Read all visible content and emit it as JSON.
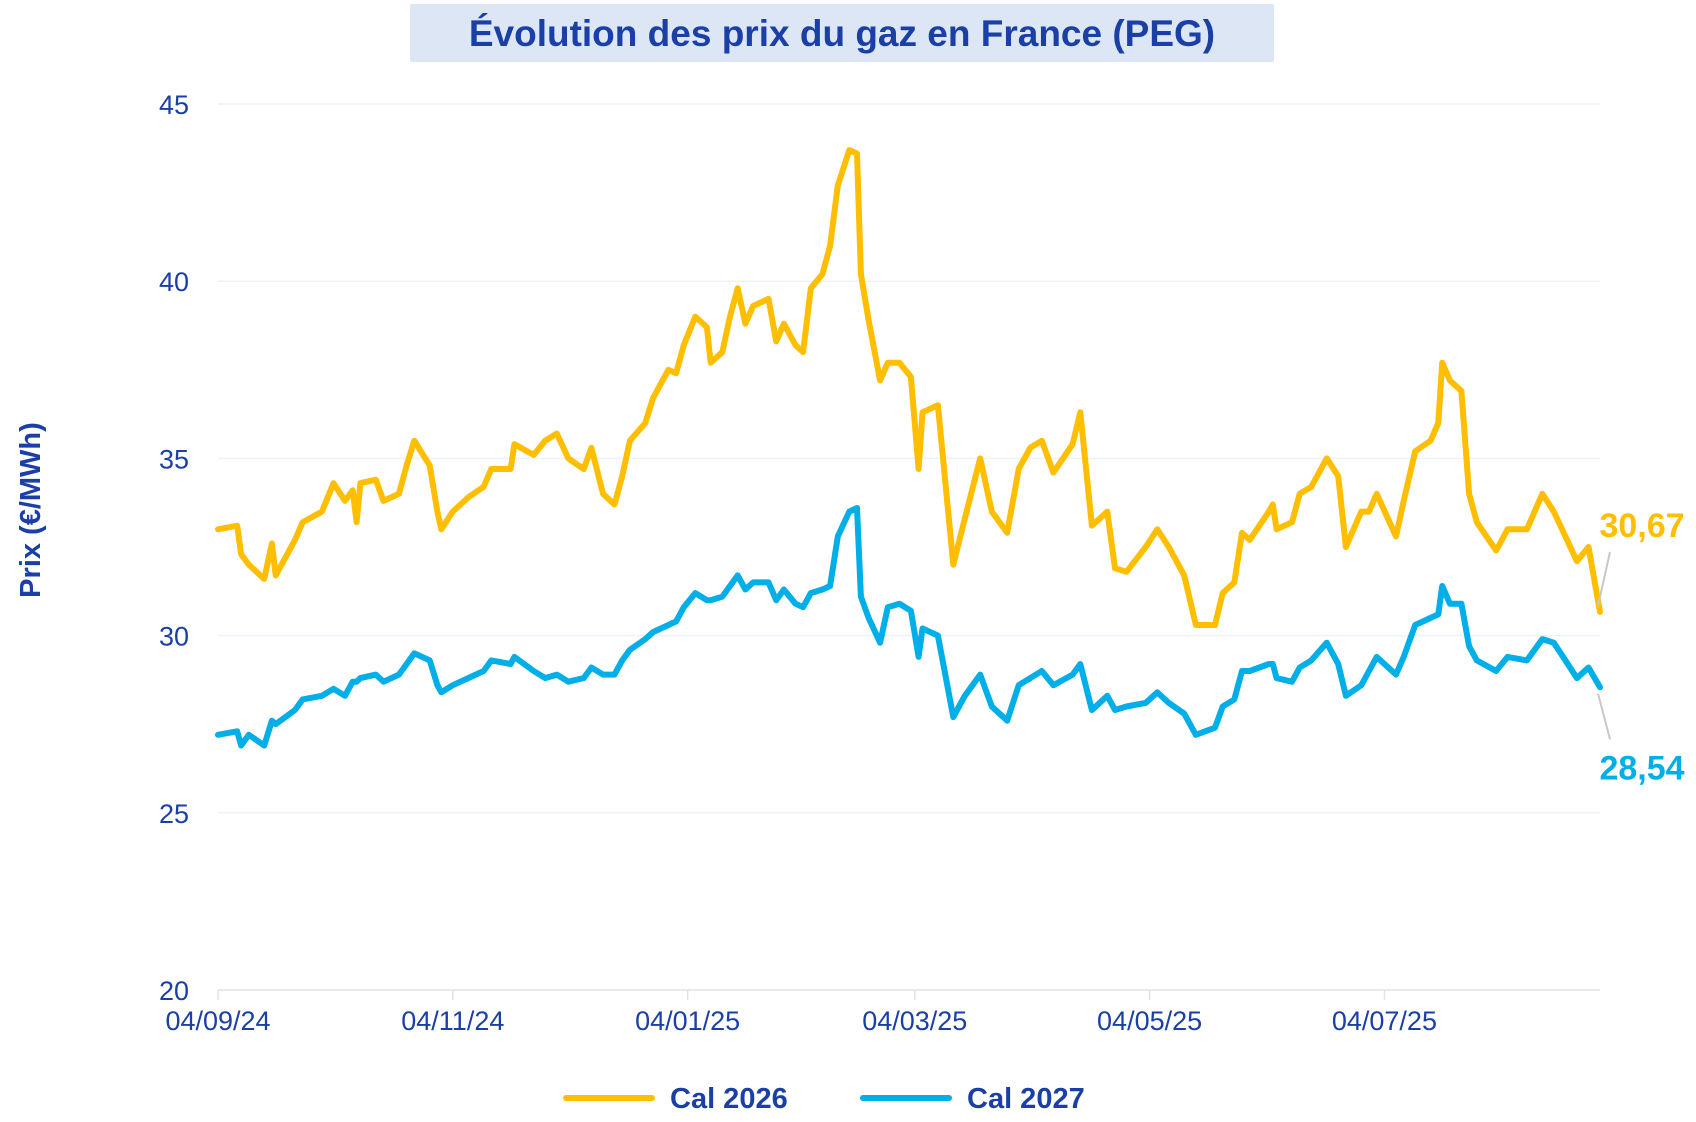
{
  "chart_data": {
    "type": "line",
    "title": "Évolution des prix du gaz en France (PEG)",
    "xlabel": "",
    "ylabel": "Prix (€/MWh)",
    "xlim": [
      "2024-09-04",
      "2025-08-29"
    ],
    "ylim": [
      20,
      45
    ],
    "yticks": [
      20,
      25,
      30,
      35,
      40,
      45
    ],
    "xticks": [
      {
        "date": "2024-09-04",
        "label": "04/09/24"
      },
      {
        "date": "2024-11-04",
        "label": "04/11/24"
      },
      {
        "date": "2025-01-04",
        "label": "04/01/25"
      },
      {
        "date": "2025-03-04",
        "label": "04/03/25"
      },
      {
        "date": "2025-05-04",
        "label": "04/05/25"
      },
      {
        "date": "2025-07-04",
        "label": "04/07/25"
      }
    ],
    "grid": true,
    "legend_position": "bottom",
    "series": [
      {
        "name": "Cal 2026",
        "color": "#ffbf00",
        "last_value_label": "30,67",
        "points": [
          [
            "2024-09-04",
            33.0
          ],
          [
            "2024-09-09",
            33.1
          ],
          [
            "2024-09-10",
            32.3
          ],
          [
            "2024-09-12",
            32.0
          ],
          [
            "2024-09-16",
            31.6
          ],
          [
            "2024-09-18",
            32.6
          ],
          [
            "2024-09-19",
            31.7
          ],
          [
            "2024-09-24",
            32.7
          ],
          [
            "2024-09-26",
            33.2
          ],
          [
            "2024-10-01",
            33.5
          ],
          [
            "2024-10-04",
            34.3
          ],
          [
            "2024-10-07",
            33.8
          ],
          [
            "2024-10-09",
            34.1
          ],
          [
            "2024-10-10",
            33.2
          ],
          [
            "2024-10-11",
            34.3
          ],
          [
            "2024-10-15",
            34.4
          ],
          [
            "2024-10-17",
            33.8
          ],
          [
            "2024-10-21",
            34.0
          ],
          [
            "2024-10-23",
            34.8
          ],
          [
            "2024-10-25",
            35.5
          ],
          [
            "2024-10-29",
            34.8
          ],
          [
            "2024-10-31",
            33.5
          ],
          [
            "2024-11-01",
            33.0
          ],
          [
            "2024-11-04",
            33.5
          ],
          [
            "2024-11-08",
            33.9
          ],
          [
            "2024-11-12",
            34.2
          ],
          [
            "2024-11-14",
            34.7
          ],
          [
            "2024-11-19",
            34.7
          ],
          [
            "2024-11-20",
            35.4
          ],
          [
            "2024-11-25",
            35.1
          ],
          [
            "2024-11-28",
            35.5
          ],
          [
            "2024-12-01",
            35.7
          ],
          [
            "2024-12-04",
            35.0
          ],
          [
            "2024-12-08",
            34.7
          ],
          [
            "2024-12-10",
            35.3
          ],
          [
            "2024-12-13",
            34.0
          ],
          [
            "2024-12-16",
            33.7
          ],
          [
            "2024-12-18",
            34.5
          ],
          [
            "2024-12-20",
            35.5
          ],
          [
            "2024-12-24",
            36.0
          ],
          [
            "2024-12-26",
            36.7
          ],
          [
            "2024-12-30",
            37.5
          ],
          [
            "2025-01-01",
            37.4
          ],
          [
            "2025-01-03",
            38.2
          ],
          [
            "2025-01-06",
            39.0
          ],
          [
            "2025-01-09",
            38.7
          ],
          [
            "2025-01-10",
            37.7
          ],
          [
            "2025-01-13",
            38.0
          ],
          [
            "2025-01-15",
            39.0
          ],
          [
            "2025-01-17",
            39.8
          ],
          [
            "2025-01-19",
            38.8
          ],
          [
            "2025-01-21",
            39.3
          ],
          [
            "2025-01-25",
            39.5
          ],
          [
            "2025-01-27",
            38.3
          ],
          [
            "2025-01-29",
            38.8
          ],
          [
            "2025-02-01",
            38.2
          ],
          [
            "2025-02-03",
            38.0
          ],
          [
            "2025-02-05",
            39.8
          ],
          [
            "2025-02-08",
            40.2
          ],
          [
            "2025-02-10",
            41.0
          ],
          [
            "2025-02-12",
            42.7
          ],
          [
            "2025-02-15",
            43.7
          ],
          [
            "2025-02-17",
            43.6
          ],
          [
            "2025-02-18",
            40.2
          ],
          [
            "2025-02-20",
            38.9
          ],
          [
            "2025-02-23",
            37.2
          ],
          [
            "2025-02-25",
            37.7
          ],
          [
            "2025-02-28",
            37.7
          ],
          [
            "2025-03-03",
            37.3
          ],
          [
            "2025-03-05",
            34.7
          ],
          [
            "2025-03-06",
            36.3
          ],
          [
            "2025-03-10",
            36.5
          ],
          [
            "2025-03-14",
            32.0
          ],
          [
            "2025-03-17",
            33.3
          ],
          [
            "2025-03-21",
            35.0
          ],
          [
            "2025-03-24",
            33.5
          ],
          [
            "2025-03-28",
            32.9
          ],
          [
            "2025-03-31",
            34.7
          ],
          [
            "2025-04-03",
            35.3
          ],
          [
            "2025-04-06",
            35.5
          ],
          [
            "2025-04-09",
            34.6
          ],
          [
            "2025-04-14",
            35.4
          ],
          [
            "2025-04-16",
            36.3
          ],
          [
            "2025-04-19",
            33.1
          ],
          [
            "2025-04-23",
            33.5
          ],
          [
            "2025-04-25",
            31.9
          ],
          [
            "2025-04-28",
            31.8
          ],
          [
            "2025-05-03",
            32.5
          ],
          [
            "2025-05-06",
            33.0
          ],
          [
            "2025-05-09",
            32.5
          ],
          [
            "2025-05-13",
            31.7
          ],
          [
            "2025-05-16",
            30.3
          ],
          [
            "2025-05-21",
            30.3
          ],
          [
            "2025-05-23",
            31.2
          ],
          [
            "2025-05-26",
            31.5
          ],
          [
            "2025-05-28",
            32.9
          ],
          [
            "2025-05-30",
            32.7
          ],
          [
            "2025-06-04",
            33.5
          ],
          [
            "2025-06-05",
            33.7
          ],
          [
            "2025-06-06",
            33.0
          ],
          [
            "2025-06-10",
            33.2
          ],
          [
            "2025-06-12",
            34.0
          ],
          [
            "2025-06-15",
            34.2
          ],
          [
            "2025-06-19",
            35.0
          ],
          [
            "2025-06-22",
            34.5
          ],
          [
            "2025-06-24",
            32.5
          ],
          [
            "2025-06-28",
            33.5
          ],
          [
            "2025-06-30",
            33.5
          ],
          [
            "2025-07-02",
            34.0
          ],
          [
            "2025-07-07",
            32.8
          ],
          [
            "2025-07-09",
            33.8
          ],
          [
            "2025-07-12",
            35.2
          ],
          [
            "2025-07-16",
            35.5
          ],
          [
            "2025-07-18",
            36.0
          ],
          [
            "2025-07-19",
            37.7
          ],
          [
            "2025-07-21",
            37.2
          ],
          [
            "2025-07-24",
            36.9
          ],
          [
            "2025-07-26",
            34.0
          ],
          [
            "2025-07-28",
            33.2
          ],
          [
            "2025-08-02",
            32.4
          ],
          [
            "2025-08-05",
            33.0
          ],
          [
            "2025-08-10",
            33.0
          ],
          [
            "2025-08-14",
            34.0
          ],
          [
            "2025-08-17",
            33.5
          ],
          [
            "2025-08-20",
            32.8
          ],
          [
            "2025-08-23",
            32.1
          ],
          [
            "2025-08-26",
            32.5
          ],
          [
            "2025-08-29",
            30.67
          ]
        ]
      },
      {
        "name": "Cal 2027",
        "color": "#00aee8",
        "last_value_label": "28,54",
        "points": [
          [
            "2024-09-04",
            27.2
          ],
          [
            "2024-09-09",
            27.3
          ],
          [
            "2024-09-10",
            26.9
          ],
          [
            "2024-09-12",
            27.2
          ],
          [
            "2024-09-16",
            26.9
          ],
          [
            "2024-09-18",
            27.6
          ],
          [
            "2024-09-19",
            27.5
          ],
          [
            "2024-09-24",
            27.9
          ],
          [
            "2024-09-26",
            28.2
          ],
          [
            "2024-10-01",
            28.3
          ],
          [
            "2024-10-04",
            28.5
          ],
          [
            "2024-10-07",
            28.3
          ],
          [
            "2024-10-09",
            28.7
          ],
          [
            "2024-10-10",
            28.7
          ],
          [
            "2024-10-11",
            28.8
          ],
          [
            "2024-10-15",
            28.9
          ],
          [
            "2024-10-17",
            28.7
          ],
          [
            "2024-10-21",
            28.9
          ],
          [
            "2024-10-23",
            29.2
          ],
          [
            "2024-10-25",
            29.5
          ],
          [
            "2024-10-29",
            29.3
          ],
          [
            "2024-10-31",
            28.6
          ],
          [
            "2024-11-01",
            28.4
          ],
          [
            "2024-11-04",
            28.6
          ],
          [
            "2024-11-08",
            28.8
          ],
          [
            "2024-11-12",
            29.0
          ],
          [
            "2024-11-14",
            29.3
          ],
          [
            "2024-11-19",
            29.2
          ],
          [
            "2024-11-20",
            29.4
          ],
          [
            "2024-11-25",
            29.0
          ],
          [
            "2024-11-28",
            28.8
          ],
          [
            "2024-12-01",
            28.9
          ],
          [
            "2024-12-04",
            28.7
          ],
          [
            "2024-12-08",
            28.8
          ],
          [
            "2024-12-10",
            29.1
          ],
          [
            "2024-12-13",
            28.9
          ],
          [
            "2024-12-16",
            28.9
          ],
          [
            "2024-12-18",
            29.3
          ],
          [
            "2024-12-20",
            29.6
          ],
          [
            "2024-12-24",
            29.9
          ],
          [
            "2024-12-26",
            30.1
          ],
          [
            "2024-12-30",
            30.3
          ],
          [
            "2025-01-01",
            30.4
          ],
          [
            "2025-01-03",
            30.8
          ],
          [
            "2025-01-06",
            31.2
          ],
          [
            "2025-01-09",
            31.0
          ],
          [
            "2025-01-10",
            31.0
          ],
          [
            "2025-01-13",
            31.1
          ],
          [
            "2025-01-15",
            31.4
          ],
          [
            "2025-01-17",
            31.7
          ],
          [
            "2025-01-19",
            31.3
          ],
          [
            "2025-01-21",
            31.5
          ],
          [
            "2025-01-25",
            31.5
          ],
          [
            "2025-01-27",
            31.0
          ],
          [
            "2025-01-29",
            31.3
          ],
          [
            "2025-02-01",
            30.9
          ],
          [
            "2025-02-03",
            30.8
          ],
          [
            "2025-02-05",
            31.2
          ],
          [
            "2025-02-08",
            31.3
          ],
          [
            "2025-02-10",
            31.4
          ],
          [
            "2025-02-12",
            32.8
          ],
          [
            "2025-02-15",
            33.5
          ],
          [
            "2025-02-17",
            33.6
          ],
          [
            "2025-02-18",
            31.1
          ],
          [
            "2025-02-20",
            30.5
          ],
          [
            "2025-02-23",
            29.8
          ],
          [
            "2025-02-25",
            30.8
          ],
          [
            "2025-02-28",
            30.9
          ],
          [
            "2025-03-03",
            30.7
          ],
          [
            "2025-03-05",
            29.4
          ],
          [
            "2025-03-06",
            30.2
          ],
          [
            "2025-03-10",
            30.0
          ],
          [
            "2025-03-14",
            27.7
          ],
          [
            "2025-03-17",
            28.3
          ],
          [
            "2025-03-21",
            28.9
          ],
          [
            "2025-03-24",
            28.0
          ],
          [
            "2025-03-28",
            27.6
          ],
          [
            "2025-03-31",
            28.6
          ],
          [
            "2025-04-03",
            28.8
          ],
          [
            "2025-04-06",
            29.0
          ],
          [
            "2025-04-09",
            28.6
          ],
          [
            "2025-04-14",
            28.9
          ],
          [
            "2025-04-16",
            29.2
          ],
          [
            "2025-04-19",
            27.9
          ],
          [
            "2025-04-23",
            28.3
          ],
          [
            "2025-04-25",
            27.9
          ],
          [
            "2025-04-28",
            28.0
          ],
          [
            "2025-05-03",
            28.1
          ],
          [
            "2025-05-06",
            28.4
          ],
          [
            "2025-05-09",
            28.1
          ],
          [
            "2025-05-13",
            27.8
          ],
          [
            "2025-05-16",
            27.2
          ],
          [
            "2025-05-21",
            27.4
          ],
          [
            "2025-05-23",
            28.0
          ],
          [
            "2025-05-26",
            28.2
          ],
          [
            "2025-05-28",
            29.0
          ],
          [
            "2025-05-30",
            29.0
          ],
          [
            "2025-06-04",
            29.2
          ],
          [
            "2025-06-05",
            29.2
          ],
          [
            "2025-06-06",
            28.8
          ],
          [
            "2025-06-10",
            28.7
          ],
          [
            "2025-06-12",
            29.1
          ],
          [
            "2025-06-15",
            29.3
          ],
          [
            "2025-06-19",
            29.8
          ],
          [
            "2025-06-22",
            29.2
          ],
          [
            "2025-06-24",
            28.3
          ],
          [
            "2025-06-28",
            28.6
          ],
          [
            "2025-06-30",
            29.0
          ],
          [
            "2025-07-02",
            29.4
          ],
          [
            "2025-07-07",
            28.9
          ],
          [
            "2025-07-09",
            29.4
          ],
          [
            "2025-07-12",
            30.3
          ],
          [
            "2025-07-16",
            30.5
          ],
          [
            "2025-07-18",
            30.6
          ],
          [
            "2025-07-19",
            31.4
          ],
          [
            "2025-07-21",
            30.9
          ],
          [
            "2025-07-24",
            30.9
          ],
          [
            "2025-07-26",
            29.7
          ],
          [
            "2025-07-28",
            29.3
          ],
          [
            "2025-08-02",
            29.0
          ],
          [
            "2025-08-05",
            29.4
          ],
          [
            "2025-08-10",
            29.3
          ],
          [
            "2025-08-14",
            29.9
          ],
          [
            "2025-08-17",
            29.8
          ],
          [
            "2025-08-20",
            29.3
          ],
          [
            "2025-08-23",
            28.8
          ],
          [
            "2025-08-26",
            29.1
          ],
          [
            "2025-08-29",
            28.54
          ]
        ]
      }
    ]
  }
}
